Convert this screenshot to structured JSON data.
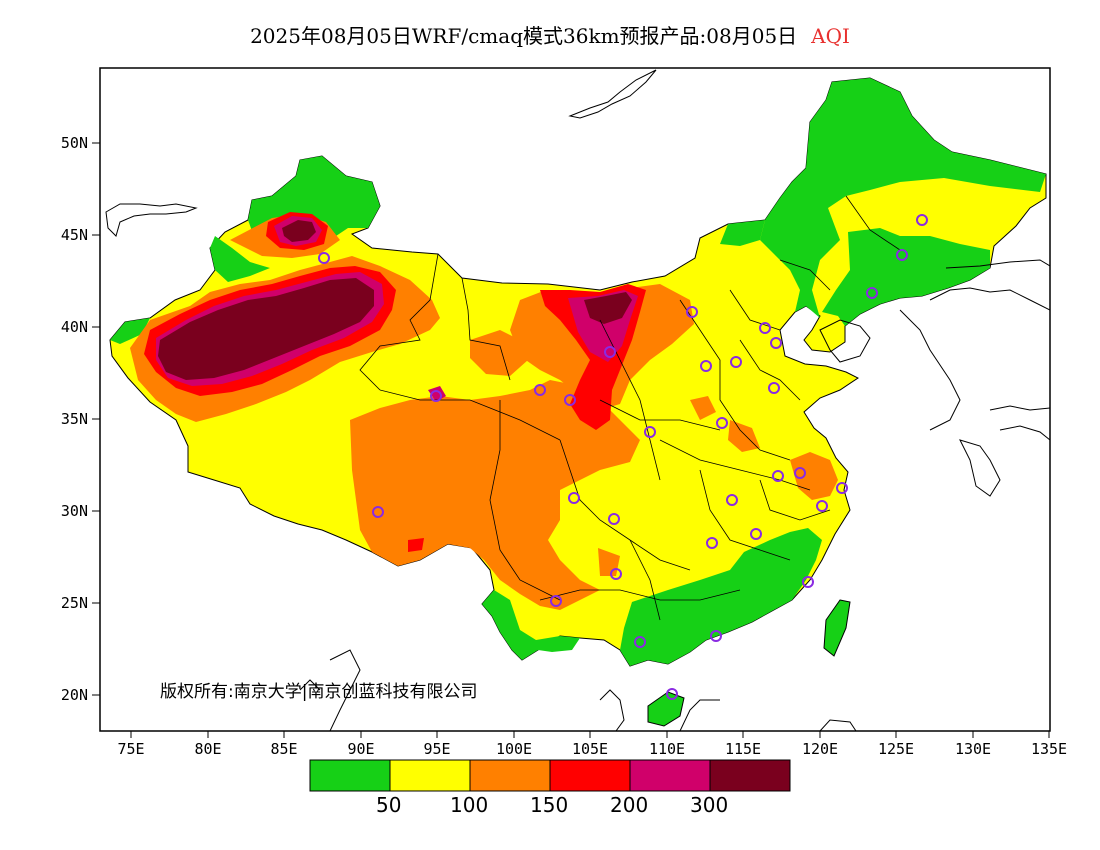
{
  "title": {
    "main": "2025年08月05日WRF/cmaq模式36km预报产品:08月05日",
    "variable": "AQI"
  },
  "map": {
    "lat_labels": [
      "50N",
      "45N",
      "40N",
      "35N",
      "30N",
      "25N",
      "20N"
    ],
    "lon_labels": [
      "75E",
      "80E",
      "85E",
      "90E",
      "95E",
      "100E",
      "105E",
      "110E",
      "115E",
      "120E",
      "125E",
      "130E",
      "135E"
    ],
    "copyright": "版权所有:南京大学|南京创蓝科技有限公司",
    "colors": {
      "good": "#16d016",
      "moderate": "#ffff00",
      "usg": "#ff8000",
      "unhealthy": "#ff0000",
      "very_unhealthy": "#d0006a",
      "hazardous": "#7a001e",
      "station": "#8a2be2"
    }
  },
  "legend": {
    "colors": [
      "#16d016",
      "#ffff00",
      "#ff8000",
      "#ff0000",
      "#d0006a",
      "#7a001e"
    ],
    "labels": [
      "50",
      "100",
      "150",
      "200",
      "300"
    ]
  }
}
